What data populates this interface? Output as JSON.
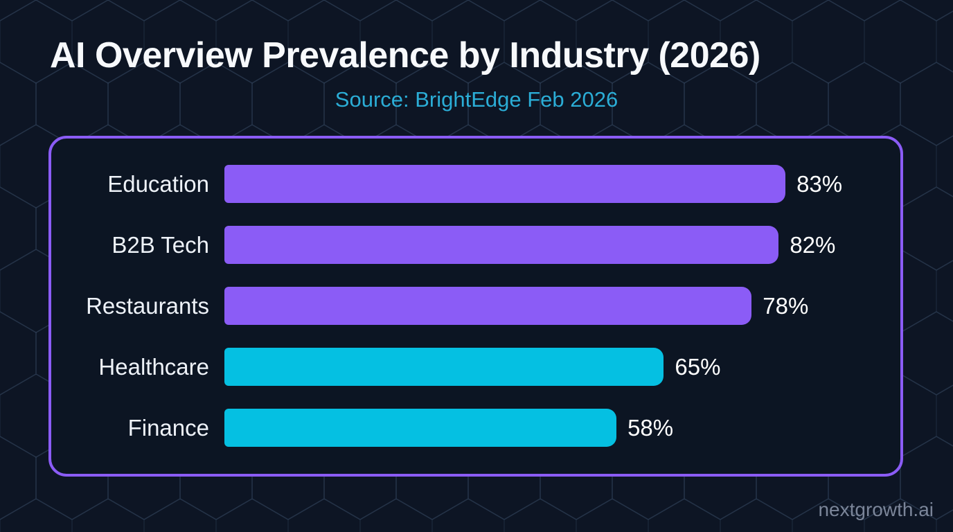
{
  "header": {
    "title": "AI Overview Prevalence by Industry (2026)",
    "subtitle": "Source: BrightEdge Feb 2026"
  },
  "footer": {
    "watermark": "nextgrowth.ai"
  },
  "colors": {
    "background": "#0d1524",
    "panel_background": "#0c1523",
    "panel_border": "#8b5cf6",
    "bar_purple": "#8b5cf6",
    "bar_cyan": "#05c0e2",
    "title_text": "#f7f9fc",
    "subtitle_text": "#2badd6",
    "label_text": "#eef2f8",
    "value_text": "#ffffff",
    "watermark_text": "#8792a6"
  },
  "chart_data": {
    "type": "bar",
    "orientation": "horizontal",
    "title": "AI Overview Prevalence by Industry (2026)",
    "subtitle": "Source: BrightEdge Feb 2026",
    "categories": [
      "Education",
      "B2B Tech",
      "Restaurants",
      "Healthcare",
      "Finance"
    ],
    "values": [
      83,
      82,
      78,
      65,
      58
    ],
    "value_labels": [
      "83%",
      "82%",
      "78%",
      "65%",
      "58%"
    ],
    "bar_colors": [
      "#8b5cf6",
      "#8b5cf6",
      "#8b5cf6",
      "#05c0e2",
      "#05c0e2"
    ],
    "unit": "%",
    "xlim": [
      0,
      100
    ],
    "grid": false,
    "legend": false,
    "layout_hint": "category labels right-aligned left of bars, value labels right of bar ends"
  }
}
